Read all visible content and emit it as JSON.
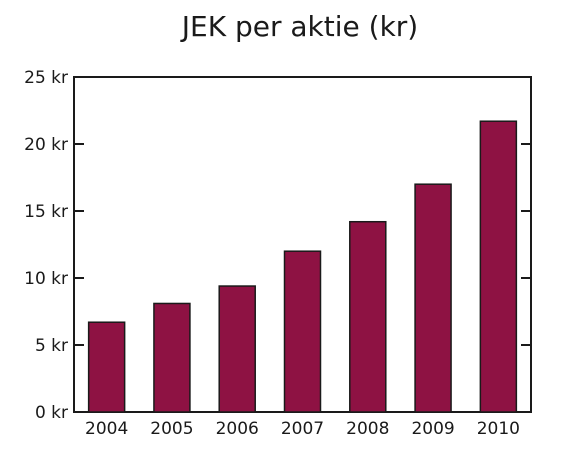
{
  "colors": {
    "bar": "#8e1243",
    "axis": "#1a1a1a",
    "background": "#ffffff"
  },
  "chart_data": {
    "type": "bar",
    "title": "JEK per aktie (kr)",
    "xlabel": "",
    "ylabel": "",
    "categories": [
      "2004",
      "2005",
      "2006",
      "2007",
      "2008",
      "2009",
      "2010"
    ],
    "values": [
      6.7,
      8.1,
      9.4,
      12.0,
      14.2,
      17.0,
      21.7
    ],
    "ylim": [
      0,
      25
    ],
    "yticks": [
      0,
      5,
      10,
      15,
      20,
      25
    ],
    "ytick_labels": [
      "0 kr",
      "5 kr",
      "10 kr",
      "15 kr",
      "20 kr",
      "25 kr"
    ],
    "grid": false,
    "legend": "none"
  }
}
